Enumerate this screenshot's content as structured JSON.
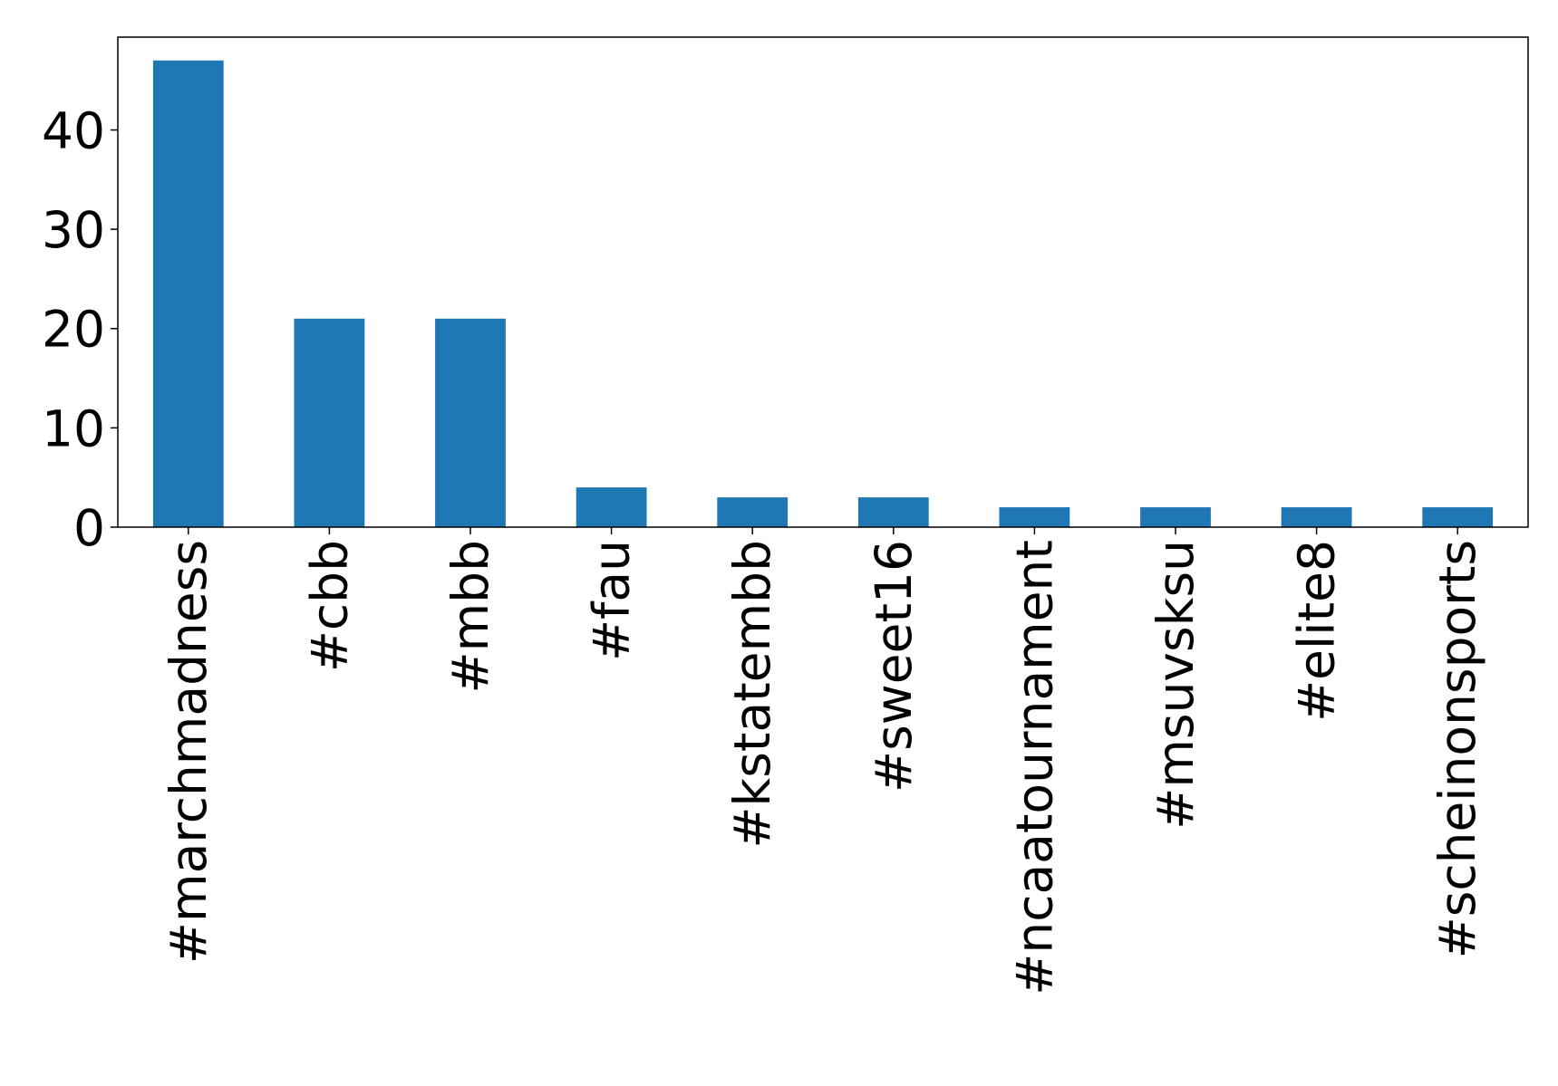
{
  "chart_data": {
    "type": "bar",
    "categories": [
      "#marchmadness",
      "#cbb",
      "#mbb",
      "#fau",
      "#kstatembb",
      "#sweet16",
      "#ncaatournament",
      "#msuvsksu",
      "#elite8",
      "#scheinonsports"
    ],
    "values": [
      47,
      21,
      21,
      4,
      3,
      3,
      2,
      2,
      2,
      2
    ],
    "title": "",
    "xlabel": "",
    "ylabel": "",
    "ylim": [
      0,
      49.35
    ],
    "yticks": [
      0,
      10,
      20,
      30,
      40
    ],
    "grid": false,
    "legend": "none",
    "bar_color": "#1f77b4",
    "xtick_rotation": "vertical"
  }
}
